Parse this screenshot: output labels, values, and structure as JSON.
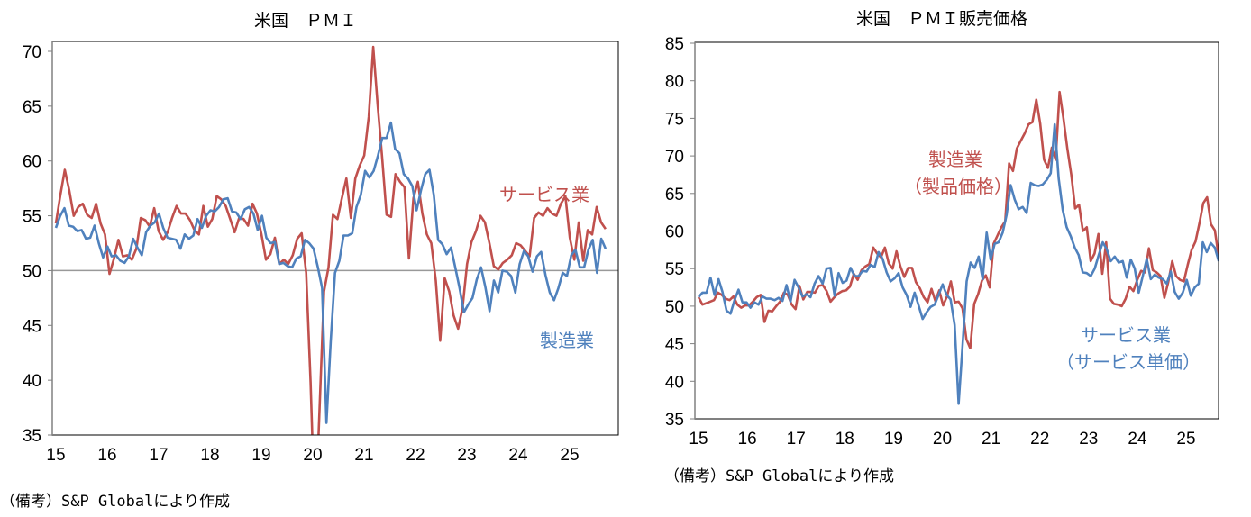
{
  "colors": {
    "red": "#C0504D",
    "blue": "#4F81BD",
    "ref": "#999999"
  },
  "chart_data": [
    {
      "type": "line",
      "title": "米国　ＰＭＩ",
      "xlabel": "",
      "ylabel": "",
      "ylim": [
        35,
        70
      ],
      "yticks": [
        "35",
        "40",
        "45",
        "50",
        "55",
        "60",
        "65",
        "70"
      ],
      "xticks": [
        "15",
        "16",
        "17",
        "18",
        "19",
        "20",
        "21",
        "22",
        "23",
        "24",
        "25"
      ],
      "x_range": [
        2015.0,
        2025.7
      ],
      "reference_line": 50,
      "grid": false,
      "series": [
        {
          "name": "サービス業",
          "color": "#C0504D",
          "label_lines": [
            "サービス業"
          ],
          "values": [
            54.3,
            56.9,
            59.2,
            57.3,
            55.0,
            55.8,
            56.1,
            55.1,
            54.8,
            56.1,
            54.3,
            53.3,
            49.7,
            51.1,
            52.8,
            51.3,
            51.4,
            51.0,
            52.0,
            54.8,
            54.6,
            54.0,
            55.7,
            53.6,
            52.8,
            53.5,
            54.8,
            55.9,
            55.2,
            55.2,
            54.6,
            53.7,
            53.3,
            55.9,
            54.0,
            54.7,
            56.8,
            56.5,
            55.9,
            54.7,
            53.5,
            54.8,
            54.7,
            54.1,
            56.1,
            55.2,
            53.3,
            51.0,
            51.5,
            53.0,
            50.6,
            51.0,
            50.6,
            51.4,
            52.9,
            53.4,
            49.8,
            39.8,
            26.7,
            37.5,
            48.1,
            50.3,
            55.1,
            54.7,
            56.6,
            58.4,
            54.8,
            58.4,
            59.6,
            60.5,
            64.0,
            70.4,
            65.1,
            60.3,
            55.1,
            54.9,
            58.8,
            58.1,
            57.6,
            51.1,
            56.6,
            58.1,
            55.2,
            53.3,
            52.5,
            49.1,
            43.6,
            49.3,
            48.1,
            45.9,
            44.7,
            46.6,
            50.6,
            52.6,
            53.6,
            55.0,
            54.4,
            52.5,
            50.4,
            50.1,
            50.7,
            51.0,
            51.4,
            52.5,
            52.3,
            51.8,
            51.3,
            54.8,
            55.3,
            55.0,
            55.7,
            55.2,
            55.0,
            56.1,
            56.8,
            53.0,
            51.0,
            54.4,
            50.9,
            53.7,
            53.3,
            55.8,
            54.4,
            53.8
          ]
        },
        {
          "name": "製造業",
          "color": "#4F81BD",
          "label_lines": [
            "製造業"
          ],
          "values": [
            53.9,
            55.0,
            55.7,
            54.1,
            54.0,
            53.6,
            53.7,
            52.9,
            53.0,
            54.1,
            52.5,
            51.2,
            52.2,
            51.3,
            51.4,
            50.9,
            50.7,
            51.3,
            52.9,
            52.1,
            51.4,
            53.5,
            54.1,
            54.4,
            55.2,
            53.9,
            53.0,
            52.9,
            52.8,
            52.0,
            53.3,
            52.9,
            53.2,
            54.7,
            53.9,
            55.0,
            55.5,
            55.4,
            55.8,
            56.5,
            56.6,
            55.4,
            55.3,
            54.7,
            55.6,
            55.8,
            55.2,
            53.7,
            55.0,
            53.0,
            52.5,
            52.6,
            50.6,
            50.7,
            50.4,
            50.3,
            51.1,
            51.3,
            52.8,
            52.5,
            52.0,
            50.3,
            48.4,
            36.1,
            43.5,
            49.8,
            50.9,
            53.2,
            53.2,
            53.4,
            55.8,
            56.9,
            59.1,
            58.5,
            59.1,
            60.5,
            62.1,
            62.1,
            63.5,
            61.1,
            60.7,
            58.8,
            58.4,
            57.7,
            55.5,
            57.3,
            58.8,
            59.2,
            56.9,
            52.8,
            52.4,
            51.5,
            52.1,
            50.3,
            48.4,
            46.2,
            46.9,
            47.5,
            49.2,
            50.3,
            48.5,
            46.3,
            49.1,
            48.0,
            50.0,
            49.9,
            49.5,
            48.0,
            50.6,
            51.8,
            51.3,
            49.9,
            51.3,
            51.7,
            49.6,
            48.0,
            47.3,
            48.4,
            49.8,
            49.5,
            51.4,
            51.9,
            50.3,
            50.3,
            51.9,
            52.8,
            49.8,
            52.9,
            52.0
          ]
        }
      ]
    },
    {
      "type": "line",
      "title": "米国　ＰＭＩ販売価格",
      "xlabel": "",
      "ylabel": "",
      "ylim": [
        35,
        85
      ],
      "yticks": [
        "35",
        "40",
        "45",
        "50",
        "55",
        "60",
        "65",
        "70",
        "75",
        "80",
        "85"
      ],
      "xticks": [
        "15",
        "16",
        "17",
        "18",
        "19",
        "20",
        "21",
        "22",
        "23",
        "24",
        "25"
      ],
      "x_range": [
        2015.0,
        2025.67
      ],
      "grid": false,
      "series": [
        {
          "name": "製造業（製品価格）",
          "color": "#C0504D",
          "label_lines": [
            "製造業",
            "（製品価格）"
          ],
          "values": [
            51.2,
            50.2,
            50.4,
            50.6,
            50.8,
            51.8,
            51.5,
            51.0,
            50.8,
            51.3,
            50.2,
            49.8,
            50.1,
            50.1,
            50.6,
            51.2,
            51.5,
            47.9,
            49.4,
            49.3,
            50.0,
            50.6,
            51.8,
            51.5,
            50.2,
            49.6,
            52.7,
            50.9,
            51.9,
            51.9,
            51.8,
            52.7,
            52.8,
            52.0,
            50.6,
            51.2,
            51.7,
            52.0,
            52.1,
            52.6,
            54.3,
            53.5,
            54.8,
            55.3,
            55.6,
            57.8,
            57.0,
            56.5,
            57.8,
            55.7,
            55.0,
            57.3,
            55.3,
            53.9,
            55.1,
            55.1,
            53.2,
            52.4,
            51.2,
            50.5,
            52.3,
            50.7,
            52.1,
            50.1,
            51.3,
            53.3,
            50.5,
            50.6,
            49.7,
            45.6,
            44.4,
            50.3,
            51.6,
            53.4,
            54.1,
            52.5,
            58.3,
            59.4,
            60.5,
            61.3,
            69.0,
            68.0,
            71.0,
            72.0,
            73.0,
            74.2,
            74.5,
            77.5,
            74.3,
            69.5,
            68.4,
            71.1,
            69.5,
            78.5,
            75.0,
            71.0,
            67.5,
            63.0,
            63.5,
            60.0,
            60.5,
            56.0,
            57.0,
            59.6,
            54.3,
            58.5,
            51.0,
            50.3,
            50.2,
            50.0,
            51.0,
            52.6,
            52.0,
            53.5,
            54.7,
            54.5,
            57.7,
            54.8,
            54.5,
            54.0,
            51.1,
            53.2,
            56.0,
            54.0,
            53.5,
            53.3,
            55.5,
            57.5,
            58.6,
            61.0,
            63.7,
            64.5,
            60.9,
            60.1,
            56.5
          ]
        },
        {
          "name": "サービス業（サービス単価）",
          "color": "#4F81BD",
          "label_lines": [
            "サービス業",
            "（サービス単価）"
          ],
          "values": [
            51.2,
            51.8,
            51.8,
            53.8,
            51.5,
            53.6,
            51.9,
            49.4,
            49.0,
            50.8,
            52.2,
            50.5,
            50.5,
            49.8,
            50.5,
            50.2,
            51.3,
            51.0,
            51.0,
            50.8,
            51.1,
            50.7,
            52.8,
            50.6,
            53.5,
            52.5,
            51.3,
            51.6,
            51.2,
            53.0,
            54.0,
            53.0,
            55.0,
            55.1,
            51.4,
            54.4,
            53.1,
            53.4,
            55.1,
            54.0,
            54.0,
            54.7,
            54.6,
            55.5,
            55.2,
            57.2,
            56.3,
            54.5,
            53.3,
            53.7,
            54.4,
            52.5,
            51.5,
            49.9,
            51.8,
            50.1,
            48.3,
            49.2,
            49.9,
            50.2,
            51.5,
            52.9,
            51.5,
            50.9,
            47.5,
            37.0,
            45.0,
            53.3,
            55.8,
            55.1,
            56.6,
            53.6,
            59.8,
            56.2,
            58.3,
            58.5,
            59.8,
            62.2,
            66.1,
            64.2,
            62.9,
            63.2,
            62.4,
            66.4,
            66.1,
            66.0,
            66.2,
            66.8,
            67.7,
            74.2,
            67.0,
            62.8,
            60.5,
            59.3,
            57.8,
            56.8,
            54.5,
            54.4,
            54.0,
            55.0,
            56.8,
            58.5,
            57.6,
            56.0,
            56.6,
            55.8,
            56.0,
            53.8,
            56.2,
            55.0,
            51.8,
            54.0,
            56.3,
            53.6,
            54.2,
            53.8,
            53.6,
            53.0,
            54.6,
            51.9,
            51.0,
            51.8,
            53.5,
            51.4,
            52.5,
            53.0,
            58.5,
            57.2,
            58.4,
            57.8,
            56.0
          ]
        }
      ]
    }
  ],
  "notes": {
    "left": "（備考）S&P Globalにより作成",
    "right": "（備考）S&P Globalにより作成"
  }
}
